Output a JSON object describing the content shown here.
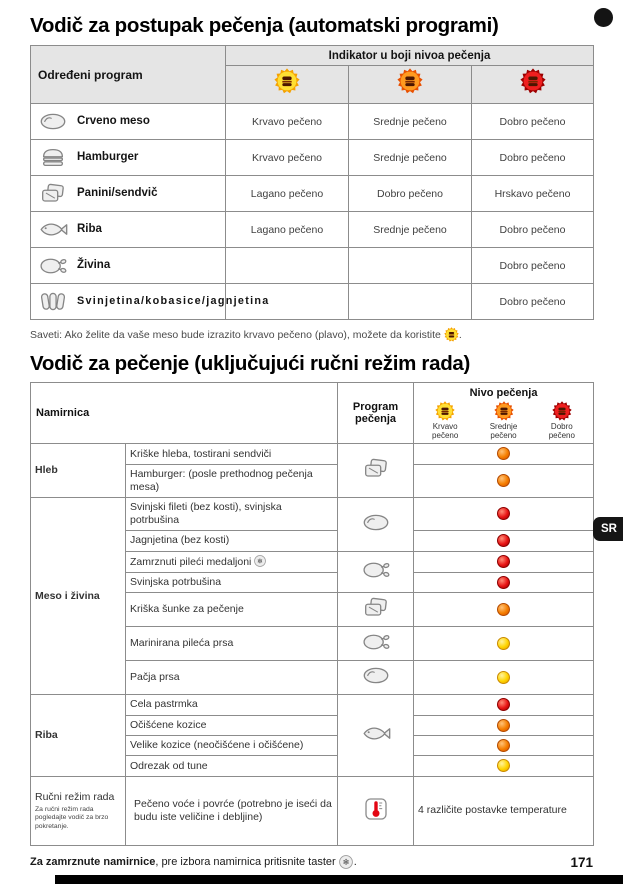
{
  "page": {
    "title1": "Vodič za postupak pečenja (automatski programi)",
    "title2": "Vodič za pečenje (uključujući ručni režim rada)",
    "tip_prefix": "Saveti: Ako želite da vaše meso bude izrazito krvavo pečeno (plavo), možete da koristite",
    "tip_suffix": ".",
    "bottom_note_bold": "Za zamrznute namirnice",
    "bottom_note_rest": ", pre izbora namirnica pritisnite taster",
    "bottom_note_suffix": ".",
    "page_number": "171",
    "lang_tab": "SR"
  },
  "colors": {
    "rare_yellow": "#F5C400",
    "medium_orange": "#F07800",
    "well_done_red": "#E01010"
  },
  "table1": {
    "header_program": "Određeni program",
    "header_indicator": "Indikator u boji nivoa pečenja",
    "level_icons": [
      "level-yellow-icon",
      "level-orange-icon",
      "level-red-icon"
    ],
    "rows": [
      {
        "icon": "steak-icon",
        "program": "Crveno meso",
        "levels": [
          "Krvavo pečeno",
          "Srednje pečeno",
          "Dobro pečeno"
        ]
      },
      {
        "icon": "hamburger-icon",
        "program": "Hamburger",
        "levels": [
          "Krvavo pečeno",
          "Srednje pečeno",
          "Dobro pečeno"
        ]
      },
      {
        "icon": "panini-icon",
        "program": "Panini/sendvič",
        "levels": [
          "Lagano pečeno",
          "Dobro pečeno",
          "Hrskavo pečeno"
        ]
      },
      {
        "icon": "fish-icon",
        "program": "Riba",
        "levels": [
          "Lagano pečeno",
          "Srednje pečeno",
          "Dobro pečeno"
        ]
      },
      {
        "icon": "poultry-icon",
        "program": "Živina",
        "levels": [
          "",
          "",
          "Dobro pečeno"
        ]
      },
      {
        "icon": "sausage-icon",
        "program": "Svinjetina/kobasice/jagnjetina",
        "levels": [
          "",
          "",
          "Dobro pečeno"
        ]
      }
    ]
  },
  "table2": {
    "header_food": "Namirnica",
    "header_program": "Program pečenja",
    "header_level": "Nivo pečenja",
    "level_columns": [
      {
        "icon": "level-yellow-icon",
        "label": "Krvavo pečeno"
      },
      {
        "icon": "level-orange-icon",
        "label": "Srednje pečeno"
      },
      {
        "icon": "level-red-icon",
        "label": "Dobro pečeno"
      }
    ],
    "groups": [
      {
        "label": "Hleb",
        "rows": [
          {
            "food": "Kriške hleba, tostirani sendviči",
            "dot": "orange",
            "program": {
              "icon": "panini-icon",
              "span": 2
            }
          },
          {
            "food": "Hamburger: (posle prethodnog pečenja mesa)",
            "dot": "orange"
          }
        ]
      },
      {
        "label": "Meso i živina",
        "rows": [
          {
            "food": "Svinjski fileti (bez kosti), svinjska potrbušina",
            "dot": "red",
            "program": {
              "icon": "steak-icon",
              "span": 2
            }
          },
          {
            "food": "Jagnjetina (bez kosti)",
            "dot": "red"
          },
          {
            "food": "Zamrznuti pileći medaljoni",
            "food_icon": "snowflake-icon",
            "dot": "red",
            "program": {
              "icon": "poultry-icon",
              "span": 2
            }
          },
          {
            "food": "Svinjska potrbušina",
            "dot": "red"
          },
          {
            "food": "Kriška šunke za pečenje",
            "dot": "orange",
            "program": {
              "icon": "panini-icon",
              "span": 1
            }
          },
          {
            "food": "Marinirana pileća prsa",
            "dot": "yellow",
            "program": {
              "icon": "poultry-icon",
              "span": 1
            }
          },
          {
            "food": "Pačja prsa",
            "dot": "yellow",
            "program": {
              "icon": "steak-icon",
              "span": 1
            }
          }
        ]
      },
      {
        "label": "Riba",
        "rows": [
          {
            "food": "Cela pastrmka",
            "dot": "red",
            "program": {
              "icon": "fish-icon",
              "span": 4
            }
          },
          {
            "food": "Očišćene kozice",
            "dot": "orange"
          },
          {
            "food": "Velike kozice (neočišćene i očišćene)",
            "dot": "orange"
          },
          {
            "food": "Odrezak od tune",
            "dot": "yellow"
          }
        ]
      },
      {
        "label": "Ručni režim rada",
        "note": "Za ručni režim rada pogledajte vodič za brzo pokretanje.",
        "rows": [
          {
            "food": "Pečeno voće i povrće (potrebno je iseći da budu iste veličine i debljine)",
            "level_text": "4 različite postavke temperature",
            "program": {
              "icon": "thermometer-icon",
              "span": 1
            }
          }
        ]
      }
    ]
  }
}
